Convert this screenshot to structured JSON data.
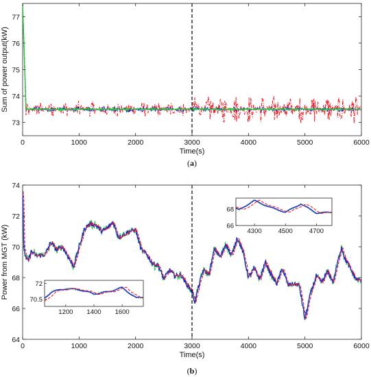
{
  "chart_data": [
    {
      "type": "line",
      "panel_label": "a",
      "xlabel": "Time(s)",
      "ylabel": "Sum of power output(kW)",
      "xlim": [
        0,
        6000
      ],
      "ylim": [
        72.5,
        77.5
      ],
      "xticks": [
        0,
        1000,
        2000,
        3000,
        4000,
        5000,
        6000
      ],
      "yticks": [
        73,
        74,
        75,
        76,
        77
      ],
      "vline_x": 3000,
      "grid": false,
      "series": [
        {
          "color": "#ee1c25",
          "style": "dashdot",
          "noise": 0.32,
          "noise_after_3000": 0.55,
          "x": [
            0,
            60,
            200,
            1000,
            2000,
            3000,
            4000,
            5000,
            6000
          ],
          "y": [
            77.5,
            73.4,
            73.5,
            73.5,
            73.5,
            73.5,
            73.5,
            73.5,
            73.5
          ]
        },
        {
          "color": "#1f1fd6",
          "style": "dashed",
          "noise": 0.1,
          "noise_after_3000": 0.08,
          "x": [
            0,
            60,
            200,
            1000,
            2000,
            3000,
            4000,
            5000,
            6000
          ],
          "y": [
            77.5,
            73.5,
            73.5,
            73.5,
            73.5,
            73.5,
            73.5,
            73.5,
            73.5
          ]
        },
        {
          "color": "#22cc33",
          "style": "solid",
          "noise": 0.04,
          "noise_after_3000": 0.04,
          "x": [
            0,
            60,
            200,
            1000,
            2000,
            3000,
            4000,
            5000,
            6000
          ],
          "y": [
            77.5,
            73.5,
            73.5,
            73.5,
            73.5,
            73.5,
            73.5,
            73.5,
            73.5
          ]
        }
      ]
    },
    {
      "type": "line",
      "panel_label": "b",
      "xlabel": "Time(s)",
      "ylabel": "Power from MGT (kW)",
      "xlim": [
        0,
        6000
      ],
      "ylim": [
        64,
        74
      ],
      "xticks": [
        0,
        1000,
        2000,
        3000,
        4000,
        5000,
        6000
      ],
      "yticks": [
        64,
        66,
        68,
        70,
        72,
        74
      ],
      "vline_x": 3000,
      "grid": false,
      "trend": {
        "x": [
          0,
          20,
          60,
          100,
          150,
          250,
          400,
          500,
          600,
          700,
          800,
          900,
          1000,
          1100,
          1200,
          1300,
          1400,
          1500,
          1600,
          1700,
          1800,
          1900,
          2000,
          2100,
          2200,
          2300,
          2400,
          2500,
          2600,
          2700,
          2800,
          2900,
          3000,
          3050,
          3100,
          3200,
          3300,
          3400,
          3500,
          3600,
          3700,
          3800,
          3900,
          4000,
          4100,
          4200,
          4300,
          4400,
          4500,
          4600,
          4700,
          4800,
          4900,
          5000,
          5100,
          5200,
          5300,
          5400,
          5500,
          5600,
          5650,
          5700,
          5800,
          5900,
          6000
        ],
        "y": [
          73.5,
          70.0,
          69.2,
          69.1,
          69.7,
          69.4,
          69.5,
          70.3,
          69.8,
          70.0,
          69.4,
          68.7,
          70.0,
          71.2,
          71.5,
          71.4,
          71.0,
          71.2,
          71.6,
          70.6,
          70.8,
          71.0,
          71.1,
          69.8,
          69.5,
          68.9,
          68.8,
          67.9,
          68.5,
          68.1,
          68.2,
          67.6,
          67.1,
          66.4,
          67.2,
          68.5,
          68.2,
          69.9,
          69.3,
          70.2,
          69.4,
          70.6,
          69.7,
          68.0,
          68.6,
          67.9,
          69.0,
          68.2,
          67.6,
          68.6,
          67.5,
          67.6,
          67.5,
          65.3,
          67.0,
          68.1,
          67.7,
          68.4,
          67.7,
          69.3,
          70.0,
          69.3,
          68.6,
          67.9,
          67.8
        ]
      },
      "series": [
        {
          "color": "#ee1c25",
          "style": "dashed",
          "lag": 20,
          "noise": 0.08
        },
        {
          "color": "#1f1fd6",
          "style": "solid",
          "lag": 0,
          "noise": 0.14
        },
        {
          "color": "#22cc33",
          "style": "dotted",
          "lag": 0,
          "noise": 0.2
        }
      ],
      "insets": [
        {
          "xlim": [
            1050,
            1750
          ],
          "ylim": [
            69.8,
            72.3
          ],
          "xticks": [
            1200,
            1400,
            1600
          ],
          "ytick_labels": [
            "72",
            "70.5"
          ],
          "ytick_values": [
            72,
            70.5
          ]
        },
        {
          "xlim": [
            4180,
            4800
          ],
          "ylim": [
            66,
            69.3
          ],
          "xticks": [
            4300,
            4500,
            4700
          ],
          "ytick_labels": [
            "68",
            "66"
          ],
          "ytick_values": [
            68,
            66
          ]
        }
      ]
    }
  ],
  "captions": {
    "a": "(a)",
    "b": "(b)",
    "a_letter": "a",
    "b_letter": "b"
  }
}
